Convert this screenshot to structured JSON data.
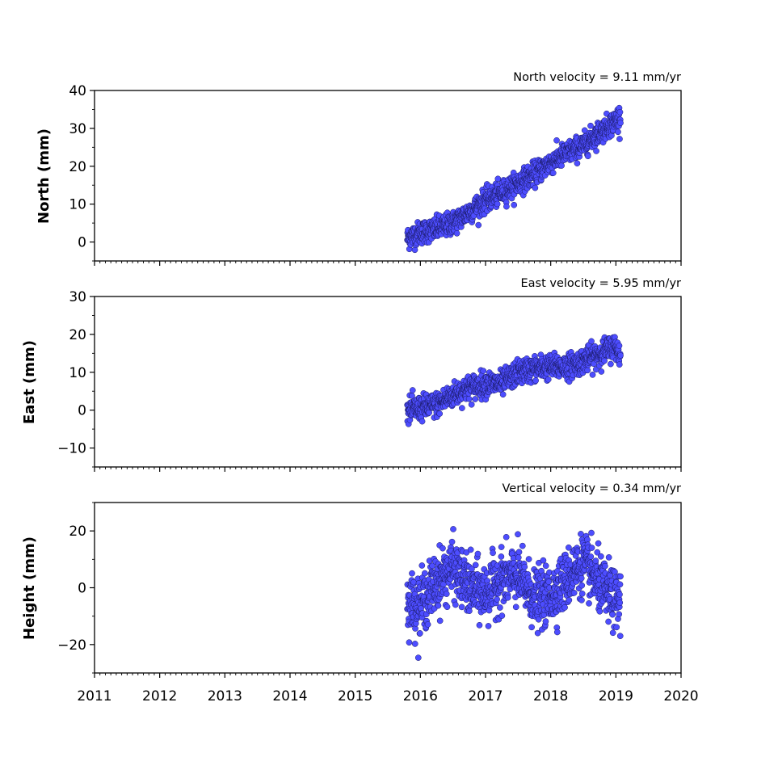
{
  "chart_data": [
    {
      "type": "scatter",
      "title": "North velocity = 9.11 mm/yr",
      "xlabel": "",
      "ylabel": "North (mm)",
      "xlim": [
        2011,
        2020
      ],
      "ylim": [
        -5,
        40
      ],
      "yticks": [
        0,
        10,
        20,
        30,
        40
      ],
      "ytick_labels": [
        "0",
        "10",
        "20",
        "30",
        "40"
      ],
      "xtick_labels_shown": false,
      "grid": false,
      "marker_color": "#4d4dff",
      "marker_edge_color": "#1a1a66",
      "time_span": [
        2015.8,
        2019.07
      ],
      "series": [
        {
          "values_summary": "daily positions with linear trend",
          "x": [
            2015.8,
            2016.0,
            2016.25,
            2016.5,
            2016.75,
            2017.0,
            2017.25,
            2017.5,
            2017.75,
            2018.0,
            2018.25,
            2018.5,
            2018.75,
            2019.0,
            2019.07
          ],
          "y": [
            1.0,
            2.5,
            3.5,
            5.0,
            8.0,
            11.0,
            13.0,
            15.5,
            18.0,
            21.0,
            23.5,
            25.5,
            29.0,
            32.0,
            33.5
          ],
          "scatter": 1.5
        }
      ]
    },
    {
      "type": "scatter",
      "title": "East velocity = 5.95 mm/yr",
      "xlabel": "",
      "ylabel": "East (mm)",
      "xlim": [
        2011,
        2020
      ],
      "ylim": [
        -15,
        30
      ],
      "yticks": [
        -10,
        0,
        10,
        20,
        30
      ],
      "ytick_labels": [
        "−10",
        "0",
        "10",
        "20",
        "30"
      ],
      "xtick_labels_shown": false,
      "grid": false,
      "marker_color": "#4d4dff",
      "marker_edge_color": "#1a1a66",
      "time_span": [
        2015.8,
        2019.07
      ],
      "series": [
        {
          "values_summary": "daily positions with linear trend",
          "x": [
            2015.8,
            2016.0,
            2016.25,
            2016.5,
            2016.75,
            2017.0,
            2017.25,
            2017.5,
            2017.75,
            2018.0,
            2018.25,
            2018.5,
            2018.75,
            2019.0,
            2019.07
          ],
          "y": [
            0.0,
            0.5,
            1.5,
            4.0,
            6.0,
            7.0,
            7.0,
            10.0,
            11.0,
            11.5,
            11.5,
            13.0,
            15.0,
            17.0,
            14.0
          ],
          "scatter": 1.6
        }
      ]
    },
    {
      "type": "scatter",
      "title": "Vertical velocity = 0.34 mm/yr",
      "xlabel": "",
      "ylabel": "Height (mm)",
      "xlim": [
        2011,
        2020
      ],
      "ylim": [
        -30,
        30
      ],
      "yticks": [
        -20,
        0,
        20
      ],
      "ytick_labels": [
        "−20",
        "0",
        "20"
      ],
      "xticks": [
        2011,
        2012,
        2013,
        2014,
        2015,
        2016,
        2017,
        2018,
        2019,
        2020
      ],
      "xtick_labels": [
        "2011",
        "2012",
        "2013",
        "2014",
        "2015",
        "2016",
        "2017",
        "2018",
        "2019",
        "2020"
      ],
      "xtick_labels_shown": true,
      "grid": false,
      "marker_color": "#4d4dff",
      "marker_edge_color": "#1a1a66",
      "time_span": [
        2015.8,
        2019.07
      ],
      "series": [
        {
          "values_summary": "daily positions with annual oscillation",
          "x": [
            2015.8,
            2016.0,
            2016.25,
            2016.5,
            2016.75,
            2017.0,
            2017.25,
            2017.5,
            2017.75,
            2018.0,
            2018.25,
            2018.5,
            2018.75,
            2019.0,
            2019.07
          ],
          "y": [
            -5.0,
            -6.0,
            2.0,
            7.0,
            0.0,
            -2.0,
            3.0,
            4.0,
            -4.0,
            -3.0,
            3.0,
            9.0,
            1.0,
            -5.0,
            -4.0
          ],
          "scatter": 5.0
        }
      ]
    }
  ]
}
